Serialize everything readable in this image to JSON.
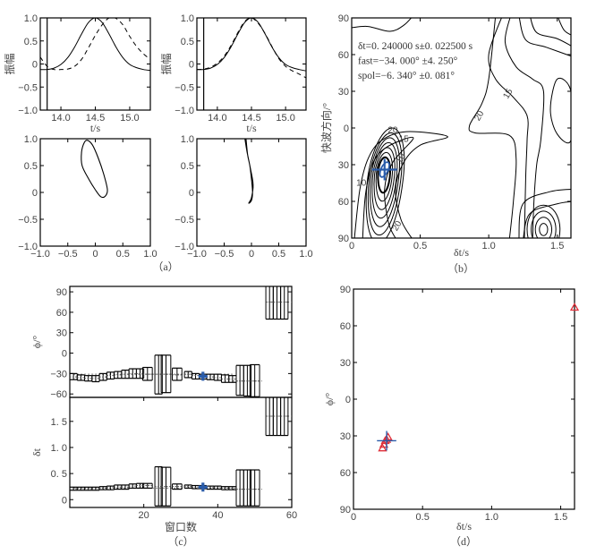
{
  "panels": {
    "a": "（a）",
    "b": "（b）",
    "c": "（c）",
    "d": "（d）"
  },
  "colors": {
    "line": "#000000",
    "best_fit": "#2a5caa",
    "scatter": "#e0303a"
  },
  "chart_data": [
    {
      "panel": "a",
      "type": "line",
      "xlabel": "t/s",
      "ylabel": "振幅",
      "xlim": [
        13.7,
        15.3
      ],
      "ylim": [
        -1.0,
        1.0
      ],
      "xticks": [
        14.0,
        14.5,
        15.0
      ],
      "xtick_labels": [
        "14.0",
        "14.5",
        "15.0"
      ],
      "yticks": [
        -1.0,
        -0.5,
        0,
        0.5,
        1.0
      ],
      "ytick_labels": [
        "−1.0",
        "−0.5",
        "0",
        "0.5",
        "1.0"
      ],
      "window_marker": 13.8,
      "x": [
        13.7,
        13.8,
        13.9,
        14.0,
        14.1,
        14.2,
        14.3,
        14.4,
        14.5,
        14.6,
        14.7,
        14.8,
        14.9,
        15.0,
        15.1,
        15.2,
        15.3
      ],
      "series": [
        {
          "style": "solid",
          "values": [
            -0.12,
            -0.12,
            -0.09,
            -0.01,
            0.14,
            0.37,
            0.65,
            0.9,
            1.0,
            0.9,
            0.65,
            0.37,
            0.14,
            -0.01,
            -0.08,
            -0.12,
            -0.14
          ]
        },
        {
          "style": "dashed",
          "values": [
            0.15,
            -0.05,
            -0.12,
            -0.12,
            -0.11,
            -0.05,
            0.1,
            0.35,
            0.62,
            0.85,
            1.0,
            0.99,
            0.85,
            0.6,
            0.38,
            0.22,
            0.1
          ]
        }
      ]
    },
    {
      "panel": "a",
      "type": "line",
      "xlabel": "t/s",
      "ylabel": "振幅",
      "xlim": [
        13.7,
        15.3
      ],
      "ylim": [
        -1.0,
        1.0
      ],
      "xticks": [
        14.0,
        14.5,
        15.0
      ],
      "xtick_labels": [
        "14.0",
        "14.5",
        "15.0"
      ],
      "yticks": [
        -1.0,
        -0.5,
        0,
        0.5,
        1.0
      ],
      "ytick_labels": [
        "−1.0",
        "−0.5",
        "0",
        "0.5",
        "1.0"
      ],
      "window_marker": 13.8,
      "x": [
        13.7,
        13.8,
        13.9,
        14.0,
        14.1,
        14.2,
        14.3,
        14.4,
        14.5,
        14.6,
        14.7,
        14.8,
        14.9,
        15.0,
        15.1,
        15.2,
        15.3
      ],
      "series": [
        {
          "style": "solid",
          "values": [
            -0.12,
            -0.12,
            -0.09,
            -0.01,
            0.14,
            0.37,
            0.65,
            0.9,
            1.0,
            0.9,
            0.65,
            0.37,
            0.14,
            -0.01,
            -0.08,
            -0.12,
            -0.15
          ]
        },
        {
          "style": "dashed",
          "values": [
            -0.12,
            -0.11,
            -0.07,
            0.02,
            0.17,
            0.4,
            0.68,
            0.92,
            1.0,
            0.88,
            0.66,
            0.38,
            0.12,
            -0.05,
            -0.15,
            -0.22,
            -0.3
          ]
        }
      ]
    },
    {
      "panel": "a",
      "type": "line",
      "xlim": [
        -1.0,
        1.0
      ],
      "ylim": [
        -1.0,
        1.0
      ],
      "xticks": [
        -1.0,
        -0.5,
        0,
        0.5,
        1.0
      ],
      "xtick_labels": [
        "−1.0",
        "−0.5",
        "0",
        "0.5",
        "1.0"
      ],
      "yticks": [
        -1.0,
        -0.5,
        0,
        0.5,
        1.0
      ],
      "ytick_labels": [
        "−1.0",
        "−0.5",
        "0",
        "0.5",
        "1.0"
      ],
      "closed": true,
      "points": [
        [
          -0.14,
          0.97
        ],
        [
          -0.05,
          0.88
        ],
        [
          0.05,
          0.65
        ],
        [
          0.15,
          0.35
        ],
        [
          0.22,
          0.05
        ],
        [
          0.18,
          -0.07
        ],
        [
          0.1,
          -0.08
        ],
        [
          0.0,
          0.05
        ],
        [
          -0.12,
          0.25
        ],
        [
          -0.24,
          0.5
        ],
        [
          -0.25,
          0.75
        ],
        [
          -0.2,
          0.93
        ]
      ]
    },
    {
      "panel": "a",
      "type": "line",
      "xlim": [
        -1.0,
        1.0
      ],
      "ylim": [
        -1.0,
        1.0
      ],
      "xticks": [
        -1.0,
        -0.5,
        0,
        0.5,
        1.0
      ],
      "xtick_labels": [
        "−1.0",
        "−0.5",
        "0",
        "0.5",
        "1.0"
      ],
      "yticks": [
        -1.0,
        -0.5,
        0,
        0.5,
        1.0
      ],
      "ytick_labels": [
        "−1.0",
        "−0.5",
        "0",
        "0.5",
        "1.0"
      ],
      "closed": false,
      "points": [
        [
          -0.1,
          1.0
        ],
        [
          -0.07,
          0.7
        ],
        [
          -0.03,
          0.5
        ],
        [
          0.0,
          0.25
        ],
        [
          0.02,
          0.0
        ],
        [
          0.0,
          -0.15
        ],
        [
          -0.05,
          -0.2
        ],
        [
          0.0,
          -0.1
        ],
        [
          0.03,
          0.15
        ],
        [
          -0.02,
          0.45
        ],
        [
          -0.08,
          0.75
        ],
        [
          -0.12,
          1.0
        ]
      ]
    },
    {
      "panel": "b",
      "type": "heatmap",
      "subtype": "contour",
      "xlabel": "δt/s",
      "ylabel": "快波方向/°",
      "xlim": [
        0,
        1.6
      ],
      "ylim": [
        -90,
        90
      ],
      "xticks": [
        0,
        0.5,
        1.0,
        1.5
      ],
      "xtick_labels": [
        "0",
        "0.5",
        "1.0",
        "1.5"
      ],
      "yticks": [
        90,
        60,
        30,
        0,
        -30,
        -60,
        -90
      ],
      "ytick_labels": [
        "90",
        "60",
        "30",
        "0",
        "30",
        "60",
        "90"
      ],
      "annotations": [
        "δt=0. 240000 s±0. 022500 s",
        "fast=−34. 000° ±4. 250°",
        "spol=−6. 340° ±0. 081°"
      ],
      "contour_labels": [
        "20",
        "15",
        "10",
        "10",
        "20",
        "15",
        "20"
      ],
      "best_point": {
        "dt": 0.24,
        "phi": -34,
        "dt_err": 0.0225,
        "phi_err": 4.25
      }
    },
    {
      "panel": "c",
      "type": "scatter",
      "subtype": "errorbar",
      "ylabel": "ϕ/°",
      "xlim": [
        0,
        60
      ],
      "ylim": [
        -65,
        98
      ],
      "yticks": [
        90,
        60,
        30,
        0,
        -30,
        -60
      ],
      "ytick_labels": [
        "90",
        "60",
        "30",
        "0",
        "−30",
        "−60"
      ],
      "windows": [
        1,
        3,
        5,
        7,
        9,
        11,
        13,
        15,
        17,
        19,
        21,
        24,
        26,
        29,
        32,
        34,
        36,
        38,
        40,
        42,
        44,
        46,
        48,
        50,
        54,
        56,
        58
      ],
      "values": [
        -35,
        -36,
        -37,
        -37,
        -35,
        -33,
        -32,
        -31,
        -30,
        -30,
        -31,
        -31,
        -31,
        -32,
        -31,
        -33,
        -34,
        -35,
        -36,
        -38,
        -38,
        -41,
        -41,
        -41,
        75,
        75,
        75
      ],
      "low": [
        -39,
        -40,
        -41,
        -42,
        -40,
        -38,
        -37,
        -37,
        -37,
        -37,
        -40,
        -60,
        -58,
        -40,
        -36,
        -38,
        -38,
        -39,
        -40,
        -43,
        -43,
        -62,
        -63,
        -64,
        50,
        50,
        50
      ],
      "high": [
        -30,
        -32,
        -33,
        -33,
        -30,
        -28,
        -27,
        -25,
        -23,
        -23,
        -21,
        -3,
        -3,
        -22,
        -27,
        -30,
        -31,
        -31,
        -31,
        -32,
        -33,
        -18,
        -18,
        -17,
        100,
        100,
        100
      ],
      "cluster_lines": [
        {
          "from": 1,
          "to": 44,
          "value": -31
        },
        {
          "from": 44,
          "to": 52,
          "value": -41
        },
        {
          "from": 53,
          "to": 60,
          "value": 75
        }
      ],
      "best_window": 36,
      "best_value": -34
    },
    {
      "panel": "c",
      "type": "scatter",
      "subtype": "errorbar",
      "xlabel": "窗口数",
      "ylabel": "δt",
      "xlim": [
        0,
        60
      ],
      "ylim": [
        -0.15,
        1.96
      ],
      "xticks": [
        20,
        40,
        60
      ],
      "xtick_labels": [
        "20",
        "40",
        "60"
      ],
      "yticks": [
        0,
        0.5,
        1.0,
        1.5
      ],
      "ytick_labels": [
        "0",
        "0. 5",
        "1. 0",
        "1. 5"
      ],
      "windows": [
        1,
        3,
        5,
        7,
        9,
        11,
        13,
        15,
        17,
        19,
        21,
        24,
        26,
        29,
        32,
        34,
        36,
        38,
        40,
        42,
        44,
        46,
        48,
        50,
        54,
        56,
        58
      ],
      "values": [
        0.21,
        0.21,
        0.21,
        0.21,
        0.22,
        0.23,
        0.24,
        0.24,
        0.26,
        0.27,
        0.27,
        0.25,
        0.25,
        0.25,
        0.25,
        0.24,
        0.24,
        0.23,
        0.23,
        0.22,
        0.22,
        0.2,
        0.2,
        0.2,
        1.6,
        1.6,
        1.6
      ],
      "low": [
        0.18,
        0.18,
        0.18,
        0.18,
        0.19,
        0.19,
        0.2,
        0.2,
        0.22,
        0.22,
        0.22,
        -0.12,
        -0.12,
        0.2,
        0.22,
        0.21,
        0.21,
        0.2,
        0.2,
        0.19,
        0.19,
        -0.12,
        -0.12,
        -0.12,
        1.23,
        1.23,
        1.23
      ],
      "high": [
        0.24,
        0.24,
        0.24,
        0.24,
        0.25,
        0.26,
        0.28,
        0.28,
        0.3,
        0.31,
        0.31,
        0.63,
        0.62,
        0.3,
        0.28,
        0.27,
        0.27,
        0.26,
        0.26,
        0.25,
        0.25,
        0.57,
        0.57,
        0.57,
        2.0,
        2.0,
        2.0
      ],
      "cluster_lines": [
        {
          "from": 1,
          "to": 44,
          "value": 0.22
        },
        {
          "from": 44,
          "to": 52,
          "value": 0.2
        },
        {
          "from": 53,
          "to": 60,
          "value": 1.6
        }
      ],
      "best_window": 36,
      "best_value": 0.24
    },
    {
      "panel": "d",
      "type": "scatter",
      "xlabel": "δt/s",
      "ylabel": "ϕ/°",
      "xlim": [
        0,
        1.6
      ],
      "ylim": [
        -90,
        90
      ],
      "xticks": [
        0,
        0.5,
        1.0,
        1.5
      ],
      "xtick_labels": [
        "0",
        "0.5",
        "1.0",
        "1.5"
      ],
      "yticks": [
        90,
        60,
        30,
        0,
        -30,
        -60,
        -90
      ],
      "ytick_labels": [
        "90",
        "60",
        "30",
        "0",
        "30",
        "60",
        "90"
      ],
      "points": [
        [
          0.21,
          -40
        ],
        [
          0.22,
          -37
        ],
        [
          0.23,
          -34
        ],
        [
          0.24,
          -33
        ],
        [
          0.25,
          -31
        ],
        [
          1.6,
          75
        ]
      ],
      "best_point": {
        "dt": 0.24,
        "phi": -34,
        "dt_range": [
          0.17,
          0.31
        ],
        "phi_range": [
          -42,
          -26
        ]
      }
    }
  ]
}
